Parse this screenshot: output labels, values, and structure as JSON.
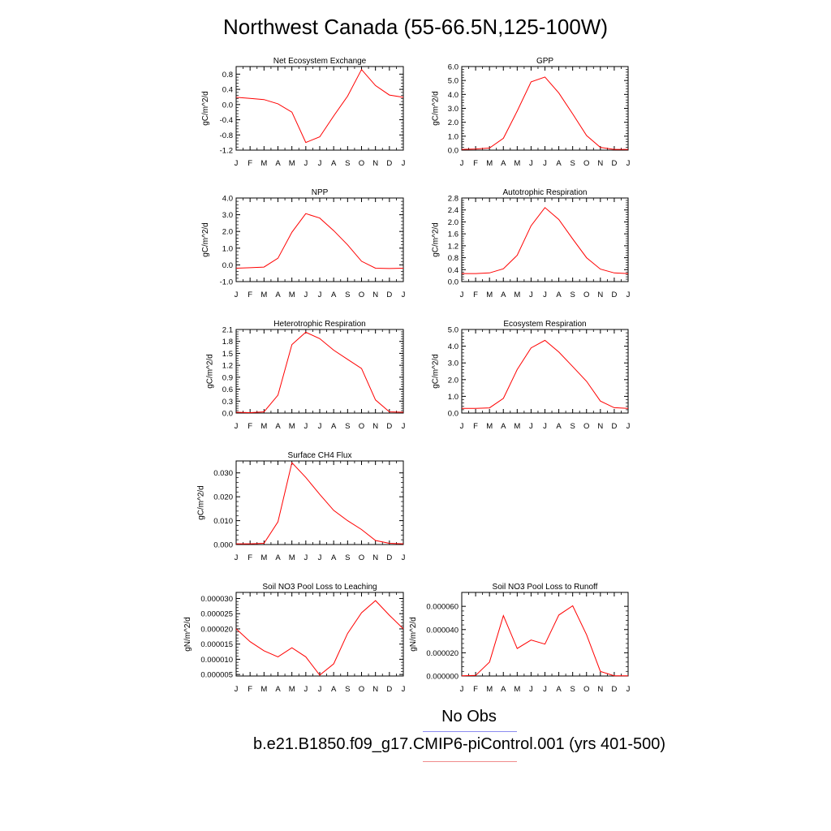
{
  "title": "Northwest Canada (55-66.5N,125-100W)",
  "legend": {
    "obs_label": "No Obs",
    "model_label": "b.e21.B1850.f09_g17.CMIP6-piControl.001 (yrs 401-500)",
    "obs_color": "#8c8cf0",
    "model_color": "#f08c8c"
  },
  "colors": {
    "series": "#ff0000",
    "axis": "#000000"
  },
  "chart_data": [
    {
      "type": "line",
      "title": "Net Ecosystem Exchange",
      "ylabel": "gC/m^2/d",
      "categories": [
        "J",
        "F",
        "M",
        "A",
        "M",
        "J",
        "J",
        "A",
        "S",
        "O",
        "N",
        "D",
        "J"
      ],
      "ylim": [
        -1.2,
        1.0
      ],
      "yticks": [
        -1.2,
        -0.8,
        -0.4,
        0.0,
        0.4,
        0.8
      ],
      "ytick_labels": [
        "-1.2",
        "-0.8",
        "-0.4",
        "0.0",
        "0.4",
        "0.8"
      ],
      "values": [
        0.19,
        0.16,
        0.13,
        0.02,
        -0.2,
        -1.0,
        -0.85,
        -0.3,
        0.22,
        0.92,
        0.5,
        0.25,
        0.19
      ]
    },
    {
      "type": "line",
      "title": "GPP",
      "ylabel": "gC/m^2/d",
      "categories": [
        "J",
        "F",
        "M",
        "A",
        "M",
        "J",
        "J",
        "A",
        "S",
        "O",
        "N",
        "D",
        "J"
      ],
      "ylim": [
        0.0,
        6.0
      ],
      "yticks": [
        0,
        1,
        2,
        3,
        4,
        5,
        6
      ],
      "ytick_labels": [
        "0.0",
        "1.0",
        "2.0",
        "3.0",
        "4.0",
        "5.0",
        "6.0"
      ],
      "values": [
        0.05,
        0.08,
        0.15,
        0.85,
        2.8,
        4.9,
        5.25,
        4.1,
        2.6,
        1.05,
        0.2,
        0.05,
        0.05
      ]
    },
    {
      "type": "line",
      "title": "NPP",
      "ylabel": "gC/m^2/d",
      "categories": [
        "J",
        "F",
        "M",
        "A",
        "M",
        "J",
        "J",
        "A",
        "S",
        "O",
        "N",
        "D",
        "J"
      ],
      "ylim": [
        -1.0,
        4.0
      ],
      "yticks": [
        -1,
        0,
        1,
        2,
        3,
        4
      ],
      "ytick_labels": [
        "-1.0",
        "0.0",
        "1.0",
        "2.0",
        "3.0",
        "4.0"
      ],
      "values": [
        -0.2,
        -0.17,
        -0.13,
        0.4,
        1.95,
        3.07,
        2.8,
        2.05,
        1.2,
        0.22,
        -0.2,
        -0.22,
        -0.2
      ]
    },
    {
      "type": "line",
      "title": "Autotrophic Respiration",
      "ylabel": "gC/m^2/d",
      "categories": [
        "J",
        "F",
        "M",
        "A",
        "M",
        "J",
        "J",
        "A",
        "S",
        "O",
        "N",
        "D",
        "J"
      ],
      "ylim": [
        0.0,
        2.8
      ],
      "yticks": [
        0,
        0.4,
        0.8,
        1.2,
        1.6,
        2.0,
        2.4,
        2.8
      ],
      "ytick_labels": [
        "0.0",
        "0.4",
        "0.8",
        "1.2",
        "1.6",
        "2.0",
        "2.4",
        "2.8"
      ],
      "values": [
        0.27,
        0.27,
        0.29,
        0.43,
        0.88,
        1.87,
        2.48,
        2.08,
        1.43,
        0.8,
        0.42,
        0.29,
        0.27
      ]
    },
    {
      "type": "line",
      "title": "Heterotrophic Respiration",
      "ylabel": "gC/m^2/d",
      "categories": [
        "J",
        "F",
        "M",
        "A",
        "M",
        "J",
        "J",
        "A",
        "S",
        "O",
        "N",
        "D",
        "J"
      ],
      "ylim": [
        0.0,
        2.1
      ],
      "yticks": [
        0,
        0.3,
        0.6,
        0.9,
        1.2,
        1.5,
        1.8,
        2.1
      ],
      "ytick_labels": [
        "0.0",
        "0.3",
        "0.6",
        "0.9",
        "1.2",
        "1.5",
        "1.8",
        "2.1"
      ],
      "values": [
        0.02,
        0.01,
        0.03,
        0.45,
        1.72,
        2.03,
        1.87,
        1.58,
        1.35,
        1.12,
        0.33,
        0.03,
        0.02
      ]
    },
    {
      "type": "line",
      "title": "Ecosystem Respiration",
      "ylabel": "gC/m^2/d",
      "categories": [
        "J",
        "F",
        "M",
        "A",
        "M",
        "J",
        "J",
        "A",
        "S",
        "O",
        "N",
        "D",
        "J"
      ],
      "ylim": [
        0.0,
        5.0
      ],
      "yticks": [
        0,
        1,
        2,
        3,
        4,
        5
      ],
      "ytick_labels": [
        "0.0",
        "1.0",
        "2.0",
        "3.0",
        "4.0",
        "5.0"
      ],
      "values": [
        0.28,
        0.28,
        0.31,
        0.88,
        2.6,
        3.9,
        4.35,
        3.65,
        2.78,
        1.9,
        0.72,
        0.32,
        0.28
      ]
    },
    {
      "type": "line",
      "title": "Surface CH4 Flux",
      "ylabel": "gC/m^2/d",
      "categories": [
        "J",
        "F",
        "M",
        "A",
        "M",
        "J",
        "J",
        "A",
        "S",
        "O",
        "N",
        "D",
        "J"
      ],
      "ylim": [
        0.0,
        0.035
      ],
      "yticks": [
        0,
        0.01,
        0.02,
        0.03
      ],
      "ytick_labels": [
        "0.000",
        "0.010",
        "0.020",
        "0.030"
      ],
      "values": [
        0.0003,
        0.0003,
        0.0005,
        0.0095,
        0.0343,
        0.0281,
        0.021,
        0.0143,
        0.01,
        0.0063,
        0.0017,
        0.0005,
        0.0003
      ]
    },
    null,
    {
      "type": "line",
      "title": "Soil NO3 Pool Loss to Leaching",
      "ylabel": "gN/m^2/d",
      "categories": [
        "J",
        "F",
        "M",
        "A",
        "M",
        "J",
        "J",
        "A",
        "S",
        "O",
        "N",
        "D",
        "J"
      ],
      "ylim": [
        4.5e-06,
        3.2e-05
      ],
      "yticks": [
        5e-06,
        1e-05,
        1.5e-05,
        2e-05,
        2.5e-05,
        3e-05
      ],
      "ytick_labels": [
        "0.000005",
        "0.000010",
        "0.000015",
        "0.000020",
        "0.000025",
        "0.000030"
      ],
      "values": [
        2e-05,
        1.58e-05,
        1.28e-05,
        1.08e-05,
        1.38e-05,
        1.08e-05,
        4.8e-06,
        8.5e-06,
        1.85e-05,
        2.53e-05,
        2.93e-05,
        2.45e-05,
        2e-05
      ]
    },
    {
      "type": "line",
      "title": "Soil NO3 Pool Loss to Runoff",
      "ylabel": "gN/m^2/d",
      "categories": [
        "J",
        "F",
        "M",
        "A",
        "M",
        "J",
        "J",
        "A",
        "S",
        "O",
        "N",
        "D",
        "J"
      ],
      "ylim": [
        0.0,
        7.2e-05
      ],
      "yticks": [
        0,
        2e-05,
        4e-05,
        6e-05
      ],
      "ytick_labels": [
        "0.000000",
        "0.000020",
        "0.000040",
        "0.000060"
      ],
      "values": [
        2e-07,
        5e-07,
        1.2e-05,
        5.2e-05,
        2.37e-05,
        3.1e-05,
        2.75e-05,
        5.25e-05,
        6.05e-05,
        3.55e-05,
        4e-06,
        2e-07,
        2e-07
      ]
    }
  ]
}
